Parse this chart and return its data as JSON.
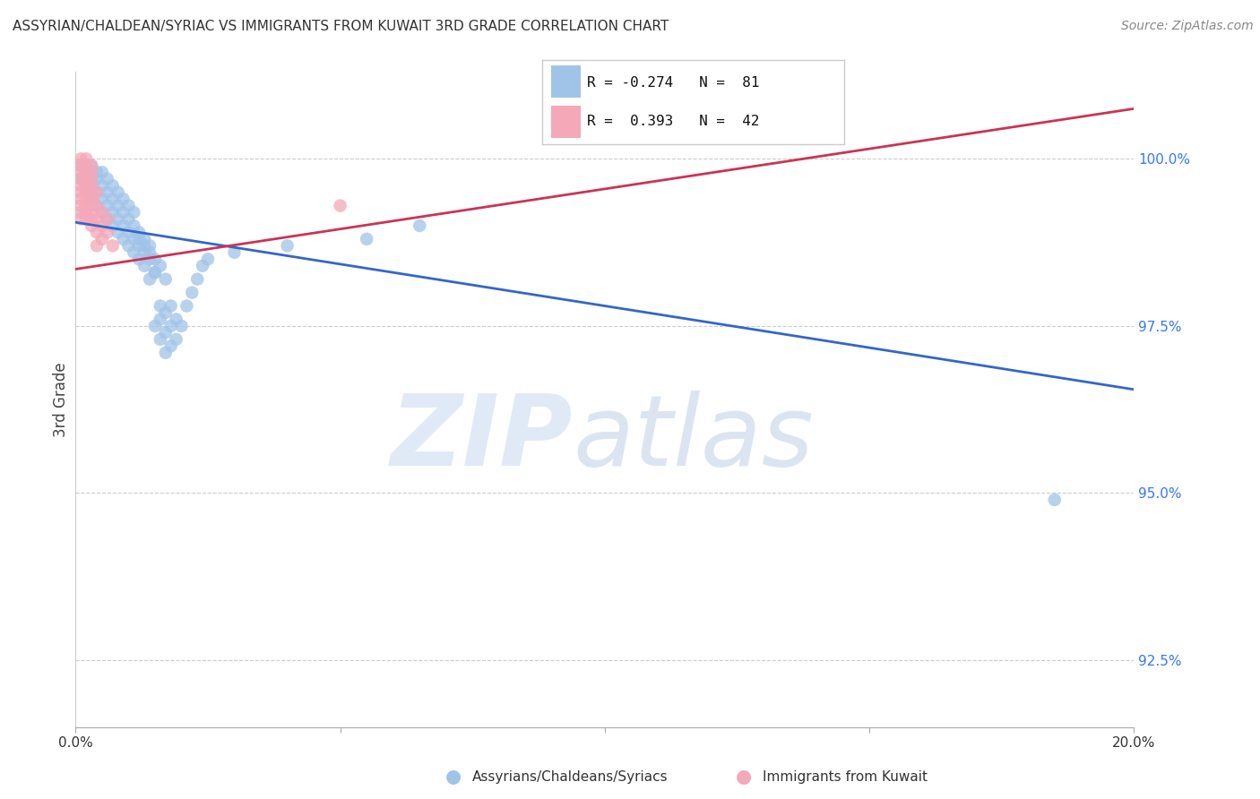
{
  "title": "ASSYRIAN/CHALDEAN/SYRIAC VS IMMIGRANTS FROM KUWAIT 3RD GRADE CORRELATION CHART",
  "source": "Source: ZipAtlas.com",
  "ylabel": "3rd Grade",
  "yticks": [
    92.5,
    95.0,
    97.5,
    100.0
  ],
  "ytick_labels": [
    "92.5%",
    "95.0%",
    "97.5%",
    "100.0%"
  ],
  "xlim": [
    0.0,
    0.2
  ],
  "ylim": [
    91.5,
    101.3
  ],
  "blue_R": -0.274,
  "blue_N": 81,
  "pink_R": 0.393,
  "pink_N": 42,
  "blue_color": "#a0c4e8",
  "pink_color": "#f4a8b8",
  "blue_line_color": "#3366cc",
  "pink_line_color": "#cc3355",
  "legend_label_blue": "Assyrians/Chaldeans/Syriacs",
  "legend_label_pink": "Immigrants from Kuwait",
  "blue_line_x": [
    0.0,
    0.2
  ],
  "blue_line_y": [
    99.05,
    96.55
  ],
  "pink_line_x": [
    0.0,
    0.2
  ],
  "pink_line_y": [
    98.35,
    100.75
  ],
  "blue_scatter_x": [
    0.001,
    0.002,
    0.001,
    0.003,
    0.002,
    0.003,
    0.004,
    0.002,
    0.003,
    0.004,
    0.005,
    0.003,
    0.004,
    0.005,
    0.006,
    0.004,
    0.005,
    0.006,
    0.007,
    0.005,
    0.006,
    0.007,
    0.008,
    0.006,
    0.007,
    0.008,
    0.009,
    0.007,
    0.008,
    0.009,
    0.01,
    0.008,
    0.009,
    0.01,
    0.011,
    0.009,
    0.01,
    0.011,
    0.012,
    0.01,
    0.011,
    0.012,
    0.013,
    0.011,
    0.012,
    0.013,
    0.014,
    0.012,
    0.013,
    0.014,
    0.015,
    0.013,
    0.014,
    0.015,
    0.016,
    0.014,
    0.015,
    0.016,
    0.017,
    0.015,
    0.016,
    0.017,
    0.018,
    0.016,
    0.017,
    0.018,
    0.019,
    0.017,
    0.018,
    0.019,
    0.02,
    0.021,
    0.022,
    0.023,
    0.024,
    0.025,
    0.03,
    0.04,
    0.055,
    0.065,
    0.185
  ],
  "blue_scatter_y": [
    99.9,
    99.8,
    99.7,
    99.9,
    99.6,
    99.7,
    99.8,
    99.5,
    99.6,
    99.7,
    99.8,
    99.4,
    99.5,
    99.6,
    99.7,
    99.3,
    99.4,
    99.5,
    99.6,
    99.2,
    99.3,
    99.4,
    99.5,
    99.1,
    99.2,
    99.3,
    99.4,
    99.0,
    99.1,
    99.2,
    99.3,
    98.9,
    99.0,
    99.1,
    99.2,
    98.8,
    98.9,
    99.0,
    98.8,
    98.7,
    98.8,
    98.9,
    98.7,
    98.6,
    98.7,
    98.8,
    98.6,
    98.5,
    98.6,
    98.7,
    98.5,
    98.4,
    98.5,
    98.3,
    98.4,
    98.2,
    98.3,
    97.8,
    98.2,
    97.5,
    97.6,
    97.7,
    97.8,
    97.3,
    97.4,
    97.5,
    97.6,
    97.1,
    97.2,
    97.3,
    97.5,
    97.8,
    98.0,
    98.2,
    98.4,
    98.5,
    98.6,
    98.7,
    98.8,
    99.0,
    94.9
  ],
  "pink_scatter_x": [
    0.001,
    0.001,
    0.001,
    0.001,
    0.001,
    0.001,
    0.001,
    0.001,
    0.001,
    0.001,
    0.002,
    0.002,
    0.002,
    0.002,
    0.002,
    0.002,
    0.002,
    0.002,
    0.002,
    0.002,
    0.003,
    0.003,
    0.003,
    0.003,
    0.003,
    0.003,
    0.003,
    0.003,
    0.003,
    0.003,
    0.004,
    0.004,
    0.004,
    0.004,
    0.004,
    0.005,
    0.005,
    0.005,
    0.006,
    0.006,
    0.007,
    0.05
  ],
  "pink_scatter_y": [
    100.0,
    99.9,
    99.8,
    99.7,
    99.6,
    99.5,
    99.4,
    99.3,
    99.2,
    99.1,
    100.0,
    99.9,
    99.8,
    99.7,
    99.6,
    99.5,
    99.4,
    99.3,
    99.2,
    99.1,
    99.9,
    99.8,
    99.7,
    99.6,
    99.5,
    99.4,
    99.3,
    99.2,
    99.1,
    99.0,
    99.5,
    99.3,
    99.1,
    98.9,
    98.7,
    99.2,
    99.0,
    98.8,
    99.1,
    98.9,
    98.7,
    99.3
  ]
}
